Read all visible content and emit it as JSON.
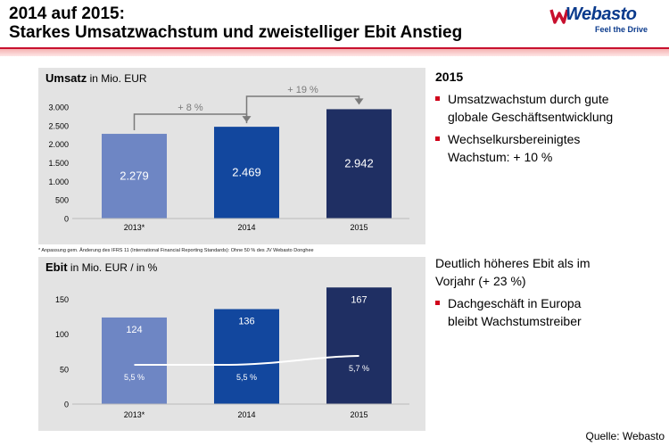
{
  "title": {
    "line1": "2014 auf 2015:",
    "line2": "Starkes Umsatzwachstum und zweistelliger Ebit Anstieg"
  },
  "logo": {
    "name": "Webasto",
    "tagline": "Feel the Drive",
    "icon": "webasto-w-logo-icon",
    "color": "#0a3a8c"
  },
  "colors": {
    "accent": "#c8102e",
    "bar2013": "#6e86c4",
    "bar2014": "#12479e",
    "bar2015": "#1f2f63",
    "panel": "#e3e3e3"
  },
  "chart_data": [
    {
      "type": "bar",
      "title_bold": "Umsatz",
      "title_rest": " in Mio. EUR",
      "categories": [
        "2013*",
        "2014",
        "2015"
      ],
      "values": [
        2279,
        2469,
        2942
      ],
      "value_labels": [
        "2.279",
        "2.469",
        "2.942"
      ],
      "yticks": [
        0,
        500,
        1000,
        1500,
        2000,
        2500,
        3000
      ],
      "ytick_labels": [
        "0",
        "500",
        "1.000",
        "1.500",
        "2.000",
        "2.500",
        "3.000"
      ],
      "ylim": [
        0,
        3000
      ],
      "annotations": [
        {
          "from": 0,
          "to": 1,
          "label": "+ 8 %"
        },
        {
          "from": 1,
          "to": 2,
          "label": "+ 19 %"
        }
      ]
    },
    {
      "type": "bar+line",
      "title_bold": "Ebit",
      "title_rest": " in Mio. EUR / in %",
      "categories": [
        "2013*",
        "2014",
        "2015"
      ],
      "values": [
        124,
        136,
        167
      ],
      "value_labels": [
        "124",
        "136",
        "167"
      ],
      "line_values_pct": [
        5.5,
        5.5,
        5.7
      ],
      "line_labels": [
        "5,5 %",
        "5,5 %",
        "5,7 %"
      ],
      "yticks": [
        0,
        50,
        100,
        150
      ],
      "ytick_labels": [
        "0",
        "50",
        "100",
        "150"
      ],
      "ylim": [
        0,
        175
      ]
    }
  ],
  "footnote": "* Anpassung gem. Änderung des IFRS 11 (International Financial Reporting Standards): Ohne 50 % des JV Webasto Donghee",
  "right_top": {
    "heading": "2015",
    "bullets": [
      "Umsatzwachstum durch gute globale Geschäftsentwicklung",
      "Wechselkursbereinigtes Wachstum: + 10 %"
    ]
  },
  "right_bottom": {
    "heading": "Deutlich höheres Ebit als im Vorjahr (+ 23 %)",
    "bullets": [
      "Dachgeschäft in Europa bleibt Wachstumstreiber"
    ]
  },
  "source": "Quelle: Webasto"
}
